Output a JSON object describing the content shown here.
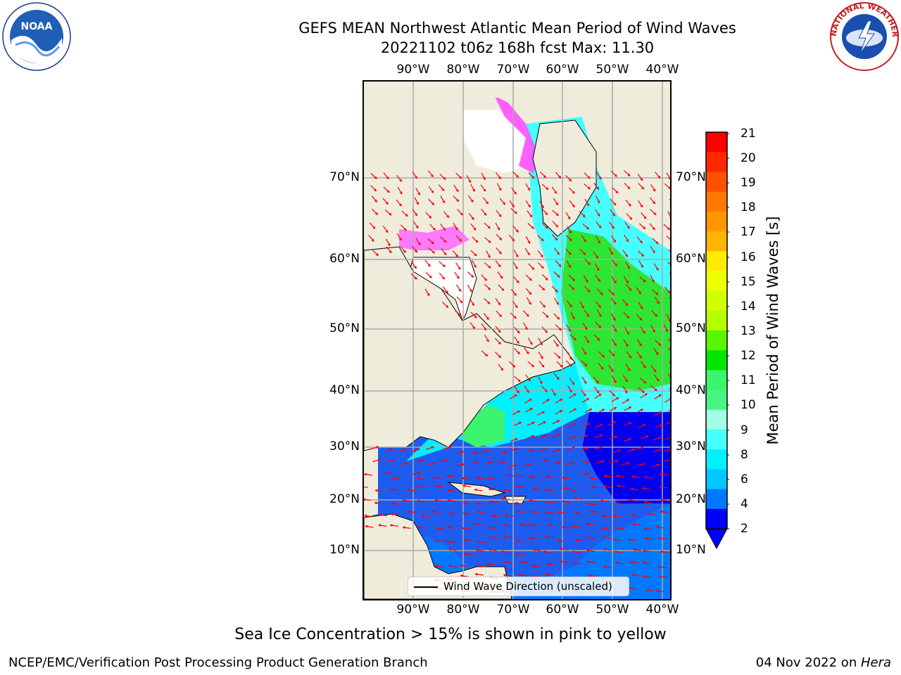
{
  "title": {
    "line1": "GEFS MEAN Northwest Atlantic Mean Period of Wind Waves",
    "line2": "20221102 t06z 168h fcst   Max: 11.30"
  },
  "logos": {
    "noaa_text": "NOAA",
    "nws_text": "NATIONAL WEATHER SERVICE"
  },
  "map": {
    "lon_labels": [
      "90°W",
      "80°W",
      "70°W",
      "60°W",
      "50°W",
      "40°W"
    ],
    "lat_labels": [
      "70°N",
      "60°N",
      "50°N",
      "40°N",
      "30°N",
      "20°N",
      "10°N"
    ],
    "legend_label": "Wind Wave Direction (unscaled)",
    "land_color": "#efecdc",
    "vector_color": "#ff0000"
  },
  "colorbar": {
    "label": "Mean Period of Wind Waves [s]",
    "ticks": [
      "21",
      "20",
      "19",
      "18",
      "17",
      "16",
      "15",
      "14",
      "13",
      "12",
      "11",
      "10",
      "9",
      "8",
      "6",
      "4",
      "2"
    ],
    "colors": [
      "#ff0000",
      "#ff2800",
      "#ff5000",
      "#ff7800",
      "#ff9600",
      "#ffb400",
      "#ffeb00",
      "#f0ff00",
      "#d2ff00",
      "#b4ff00",
      "#5af500",
      "#00e600",
      "#3cf56e",
      "#46f582",
      "#a0ffe6",
      "#46ffff",
      "#00f0ff",
      "#00c8ff",
      "#0078ff",
      "#0000ff"
    ]
  },
  "footer": {
    "note": "Sea Ice Concentration > 15% is shown in pink to yellow",
    "credit_left": "NCEP/EMC/Verification Post Processing Product Generation Branch",
    "credit_right_date": "04 Nov 2022 on ",
    "credit_right_host": "Hera"
  }
}
